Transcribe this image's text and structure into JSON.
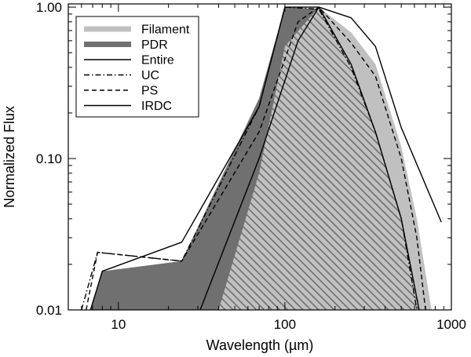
{
  "chart_data": {
    "type": "area",
    "x_scale": "log",
    "y_scale": "log",
    "xlim": [
      5,
      1000
    ],
    "ylim": [
      0.01,
      1.05
    ],
    "xlabel": "Wavelength (µm)",
    "ylabel": "Normalized Flux",
    "grid": false,
    "legend_position": "top-left",
    "x_tick_labels": [
      {
        "value": 10,
        "label": "10"
      },
      {
        "value": 100,
        "label": "100"
      },
      {
        "value": 1000,
        "label": "1000"
      }
    ],
    "y_tick_labels": [
      {
        "value": 0.01,
        "label": "0.01"
      },
      {
        "value": 0.1,
        "label": "0.10"
      },
      {
        "value": 1,
        "label": "1.00"
      }
    ],
    "series": [
      {
        "name": "Filament",
        "style": "fill",
        "color": "#c0c0c0",
        "points": [
          [
            40,
            0.01
          ],
          [
            70,
            0.08
          ],
          [
            100,
            0.55
          ],
          [
            160,
            1.0
          ],
          [
            250,
            0.68
          ],
          [
            350,
            0.42
          ],
          [
            500,
            0.12
          ],
          [
            620,
            0.04
          ],
          [
            760,
            0.01
          ]
        ]
      },
      {
        "name": "PDR",
        "style": "fill",
        "color": "#707070",
        "points": [
          [
            6.8,
            0.01
          ],
          [
            8,
            0.018
          ],
          [
            24,
            0.021
          ],
          [
            70,
            0.25
          ],
          [
            100,
            1.0
          ],
          [
            160,
            0.97
          ],
          [
            250,
            0.4
          ],
          [
            350,
            0.15
          ],
          [
            500,
            0.04
          ],
          [
            650,
            0.01
          ]
        ]
      },
      {
        "name": "Entire",
        "style": "solid",
        "color": "#000000",
        "points": [
          [
            6.8,
            0.01
          ],
          [
            8,
            0.018
          ],
          [
            24,
            0.028
          ],
          [
            70,
            0.22
          ],
          [
            100,
            1.0
          ],
          [
            160,
            1.0
          ],
          [
            250,
            0.85
          ],
          [
            350,
            0.55
          ],
          [
            500,
            0.16
          ],
          [
            870,
            0.038
          ]
        ]
      },
      {
        "name": "UC",
        "style": "dashdot",
        "color": "#000000",
        "points": [
          [
            6,
            0.01
          ],
          [
            7.5,
            0.024
          ],
          [
            24,
            0.021
          ],
          [
            70,
            0.22
          ],
          [
            100,
            1.0
          ],
          [
            160,
            0.97
          ],
          [
            250,
            0.4
          ],
          [
            350,
            0.15
          ],
          [
            500,
            0.04
          ],
          [
            620,
            0.01
          ]
        ]
      },
      {
        "name": "PS",
        "style": "dashed",
        "color": "#000000",
        "points": [
          [
            6.4,
            0.01
          ],
          [
            7.5,
            0.024
          ],
          [
            24,
            0.021
          ],
          [
            70,
            0.15
          ],
          [
            120,
            0.8
          ],
          [
            160,
            1.0
          ],
          [
            250,
            0.58
          ],
          [
            350,
            0.35
          ],
          [
            500,
            0.1
          ],
          [
            620,
            0.03
          ],
          [
            700,
            0.01
          ]
        ]
      },
      {
        "name": "IRDC",
        "style": "solid",
        "color": "#000000",
        "points": [
          [
            31,
            0.01
          ],
          [
            70,
            0.1
          ],
          [
            120,
            0.6
          ],
          [
            160,
            1.0
          ],
          [
            250,
            0.42
          ],
          [
            350,
            0.15
          ],
          [
            500,
            0.04
          ],
          [
            640,
            0.01
          ]
        ]
      }
    ]
  }
}
